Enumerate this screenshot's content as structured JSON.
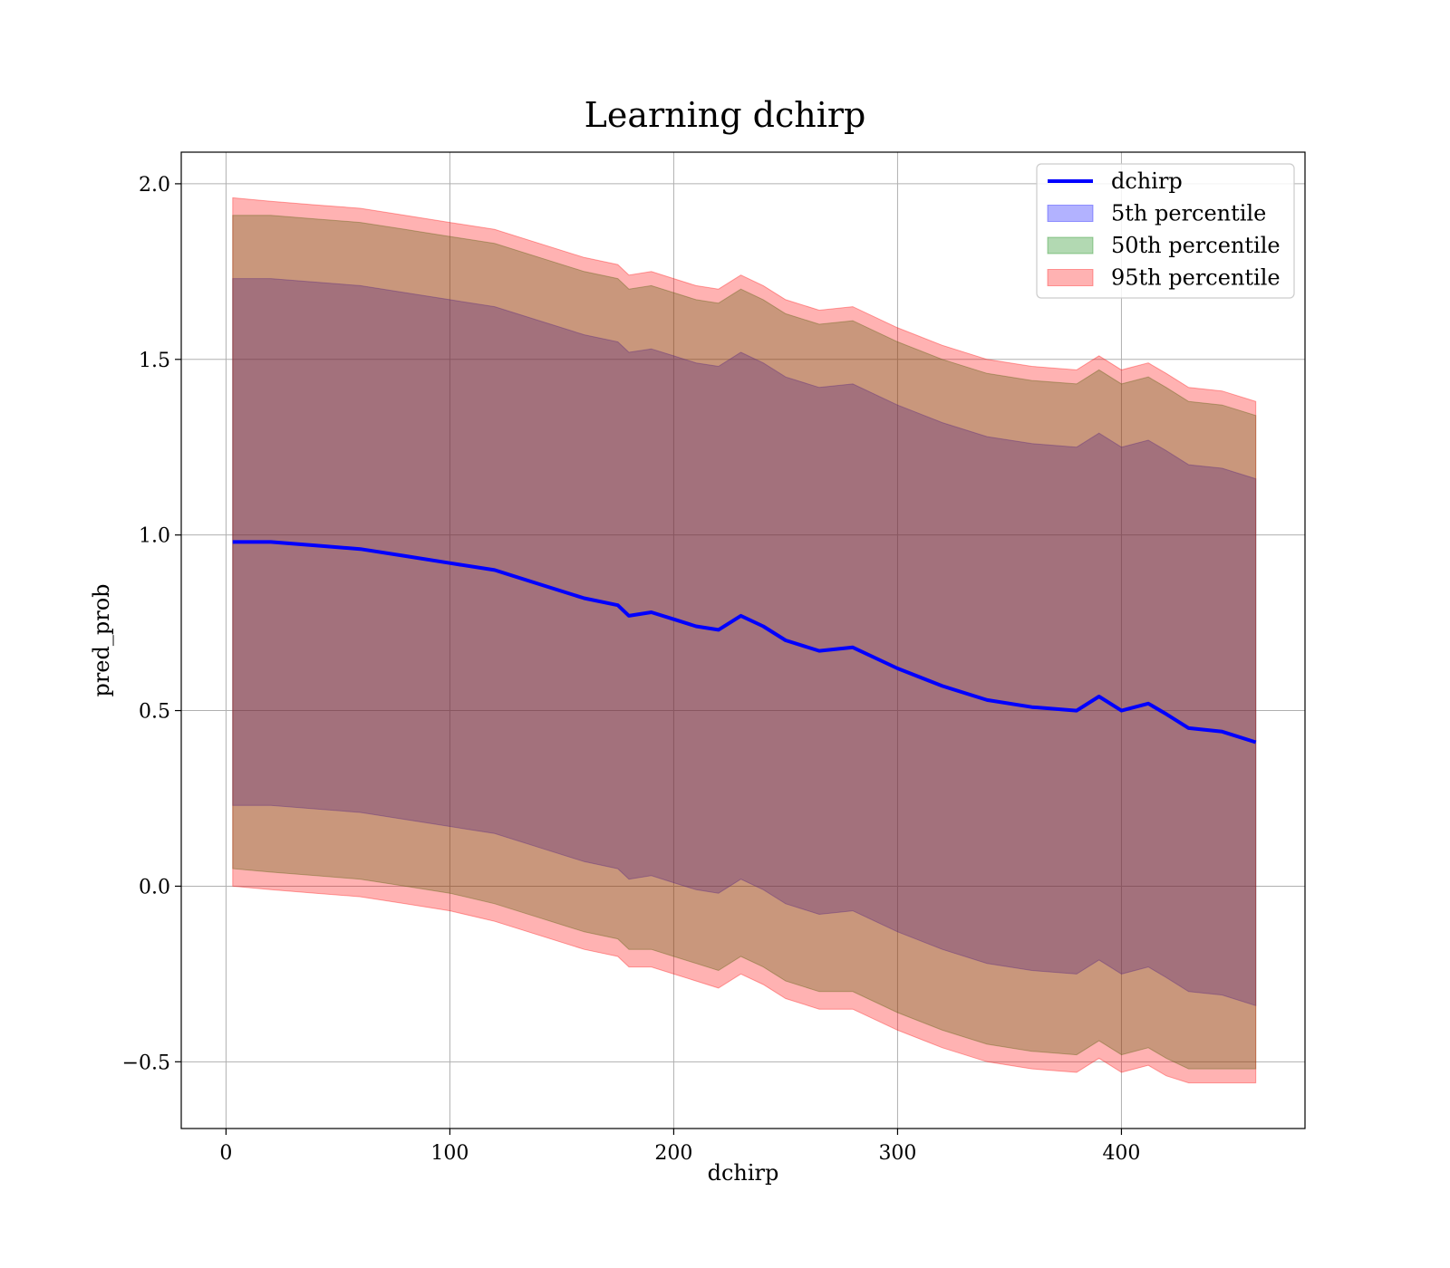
{
  "chart_data": {
    "type": "area",
    "title": "Learning dchirp",
    "xlabel": "dchirp",
    "ylabel": "pred_prob",
    "xlim": [
      -20,
      482
    ],
    "ylim": [
      -0.69,
      2.09
    ],
    "xticks": [
      0,
      100,
      200,
      300,
      400
    ],
    "yticks": [
      -0.5,
      0.0,
      0.5,
      1.0,
      1.5,
      2.0
    ],
    "xtick_labels": [
      "0",
      "100",
      "200",
      "300",
      "400"
    ],
    "ytick_labels": [
      "−0.5",
      "0.0",
      "0.5",
      "1.0",
      "1.5",
      "2.0"
    ],
    "grid": true,
    "legend_position": "top-right",
    "x": [
      3,
      20,
      40,
      60,
      80,
      100,
      120,
      140,
      160,
      175,
      180,
      190,
      200,
      210,
      220,
      230,
      240,
      250,
      265,
      280,
      300,
      320,
      340,
      360,
      380,
      390,
      400,
      412,
      420,
      430,
      445,
      460
    ],
    "series": [
      {
        "name": "dchirp",
        "kind": "line",
        "color": "#0000ff",
        "values": [
          0.98,
          0.98,
          0.97,
          0.96,
          0.94,
          0.92,
          0.9,
          0.86,
          0.82,
          0.8,
          0.77,
          0.78,
          0.76,
          0.74,
          0.73,
          0.77,
          0.74,
          0.7,
          0.67,
          0.68,
          0.62,
          0.57,
          0.53,
          0.51,
          0.5,
          0.54,
          0.5,
          0.52,
          0.49,
          0.45,
          0.44,
          0.41
        ]
      },
      {
        "name": "5th percentile",
        "kind": "band",
        "color": "#0000ff",
        "alpha": 0.3,
        "lower": [
          0.23,
          0.23,
          0.22,
          0.21,
          0.19,
          0.17,
          0.15,
          0.11,
          0.07,
          0.05,
          0.02,
          0.03,
          0.01,
          -0.01,
          -0.02,
          0.02,
          -0.01,
          -0.05,
          -0.08,
          -0.07,
          -0.13,
          -0.18,
          -0.22,
          -0.24,
          -0.25,
          -0.21,
          -0.25,
          -0.23,
          -0.26,
          -0.3,
          -0.31,
          -0.34
        ],
        "upper": [
          1.73,
          1.73,
          1.72,
          1.71,
          1.69,
          1.67,
          1.65,
          1.61,
          1.57,
          1.55,
          1.52,
          1.53,
          1.51,
          1.49,
          1.48,
          1.52,
          1.49,
          1.45,
          1.42,
          1.43,
          1.37,
          1.32,
          1.28,
          1.26,
          1.25,
          1.29,
          1.25,
          1.27,
          1.24,
          1.2,
          1.19,
          1.16
        ]
      },
      {
        "name": "50th percentile",
        "kind": "band",
        "color": "#008000",
        "alpha": 0.3,
        "lower": [
          0.05,
          0.04,
          0.03,
          0.02,
          0.0,
          -0.02,
          -0.05,
          -0.09,
          -0.13,
          -0.15,
          -0.18,
          -0.18,
          -0.2,
          -0.22,
          -0.24,
          -0.2,
          -0.23,
          -0.27,
          -0.3,
          -0.3,
          -0.36,
          -0.41,
          -0.45,
          -0.47,
          -0.48,
          -0.44,
          -0.48,
          -0.46,
          -0.49,
          -0.52,
          -0.52,
          -0.52
        ],
        "upper": [
          1.91,
          1.91,
          1.9,
          1.89,
          1.87,
          1.85,
          1.83,
          1.79,
          1.75,
          1.73,
          1.7,
          1.71,
          1.69,
          1.67,
          1.66,
          1.7,
          1.67,
          1.63,
          1.6,
          1.61,
          1.55,
          1.5,
          1.46,
          1.44,
          1.43,
          1.47,
          1.43,
          1.45,
          1.42,
          1.38,
          1.37,
          1.34
        ]
      },
      {
        "name": "95th percentile",
        "kind": "band",
        "color": "#ff0000",
        "alpha": 0.3,
        "lower": [
          0.0,
          -0.01,
          -0.02,
          -0.03,
          -0.05,
          -0.07,
          -0.1,
          -0.14,
          -0.18,
          -0.2,
          -0.23,
          -0.23,
          -0.25,
          -0.27,
          -0.29,
          -0.25,
          -0.28,
          -0.32,
          -0.35,
          -0.35,
          -0.41,
          -0.46,
          -0.5,
          -0.52,
          -0.53,
          -0.49,
          -0.53,
          -0.51,
          -0.54,
          -0.56,
          -0.56,
          -0.56
        ],
        "upper": [
          1.96,
          1.95,
          1.94,
          1.93,
          1.91,
          1.89,
          1.87,
          1.83,
          1.79,
          1.77,
          1.74,
          1.75,
          1.73,
          1.71,
          1.7,
          1.74,
          1.71,
          1.67,
          1.64,
          1.65,
          1.59,
          1.54,
          1.5,
          1.48,
          1.47,
          1.51,
          1.47,
          1.49,
          1.46,
          1.42,
          1.41,
          1.38
        ]
      }
    ]
  }
}
